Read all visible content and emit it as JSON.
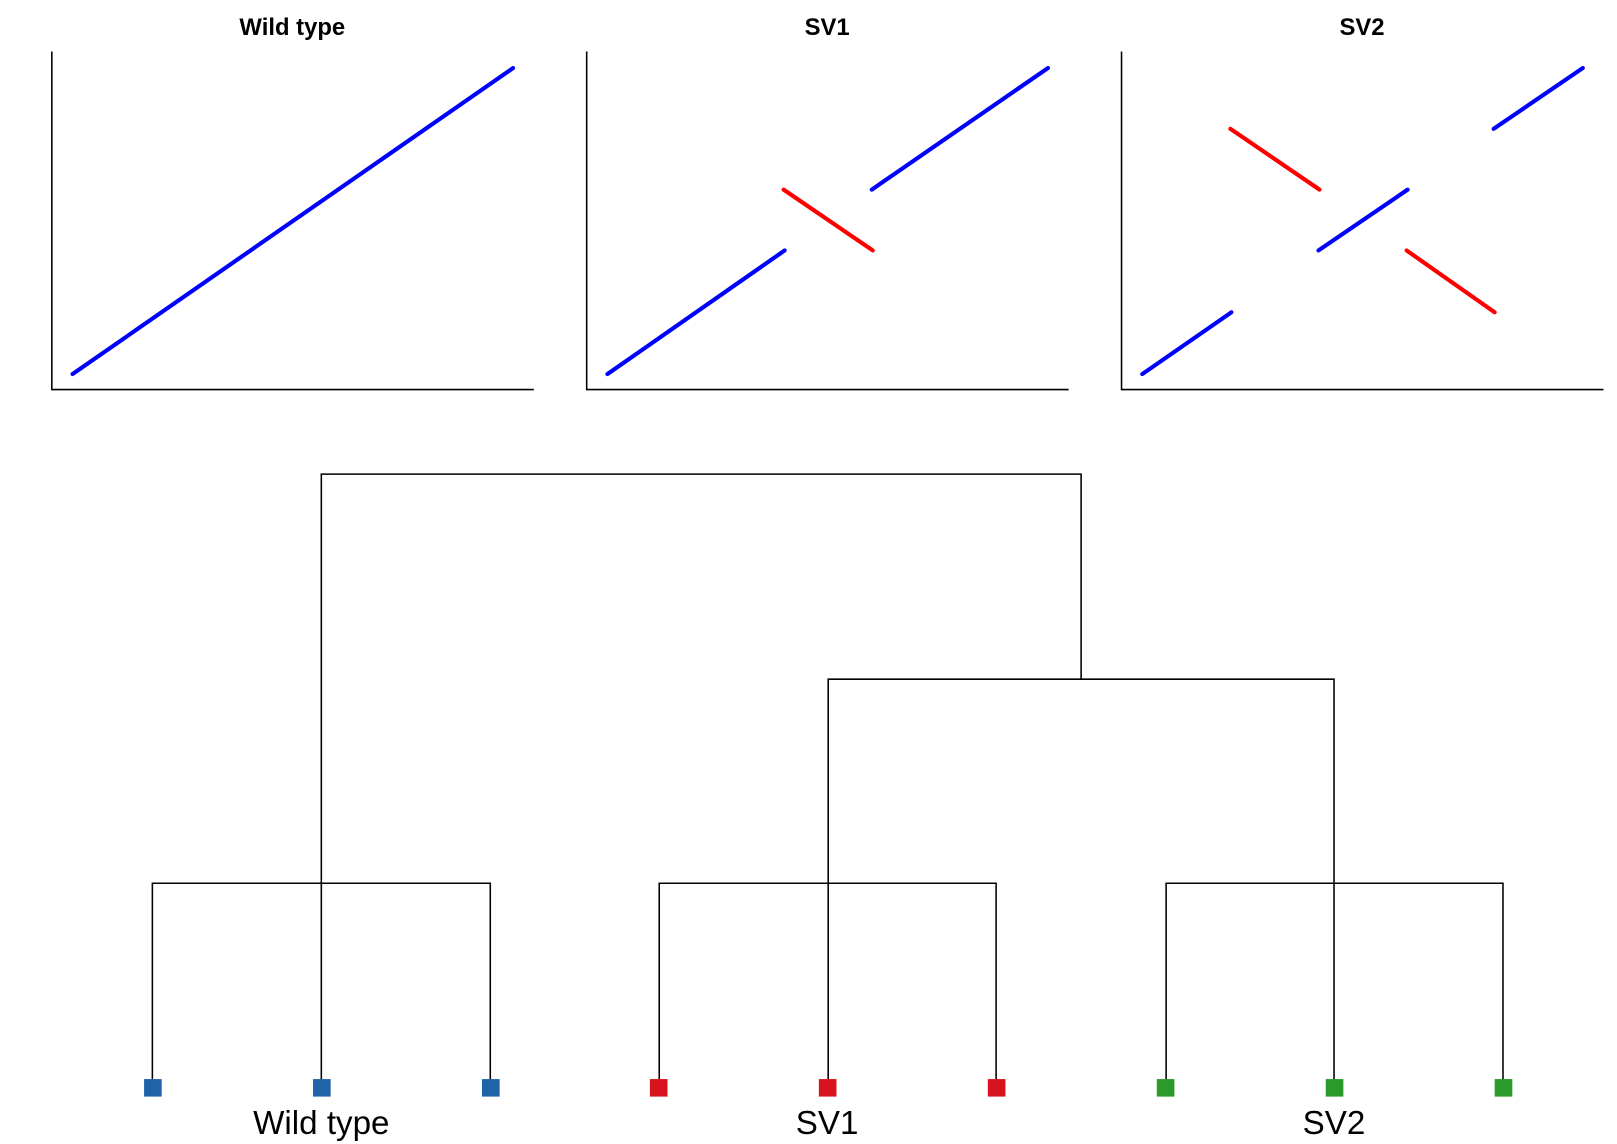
{
  "panels": [
    {
      "title": "Wild type"
    },
    {
      "title": "SV1"
    },
    {
      "title": "SV2"
    }
  ],
  "dendrogram": {
    "groups": [
      {
        "label": "Wild type"
      },
      {
        "label": "SV1"
      },
      {
        "label": "SV2"
      }
    ]
  }
}
